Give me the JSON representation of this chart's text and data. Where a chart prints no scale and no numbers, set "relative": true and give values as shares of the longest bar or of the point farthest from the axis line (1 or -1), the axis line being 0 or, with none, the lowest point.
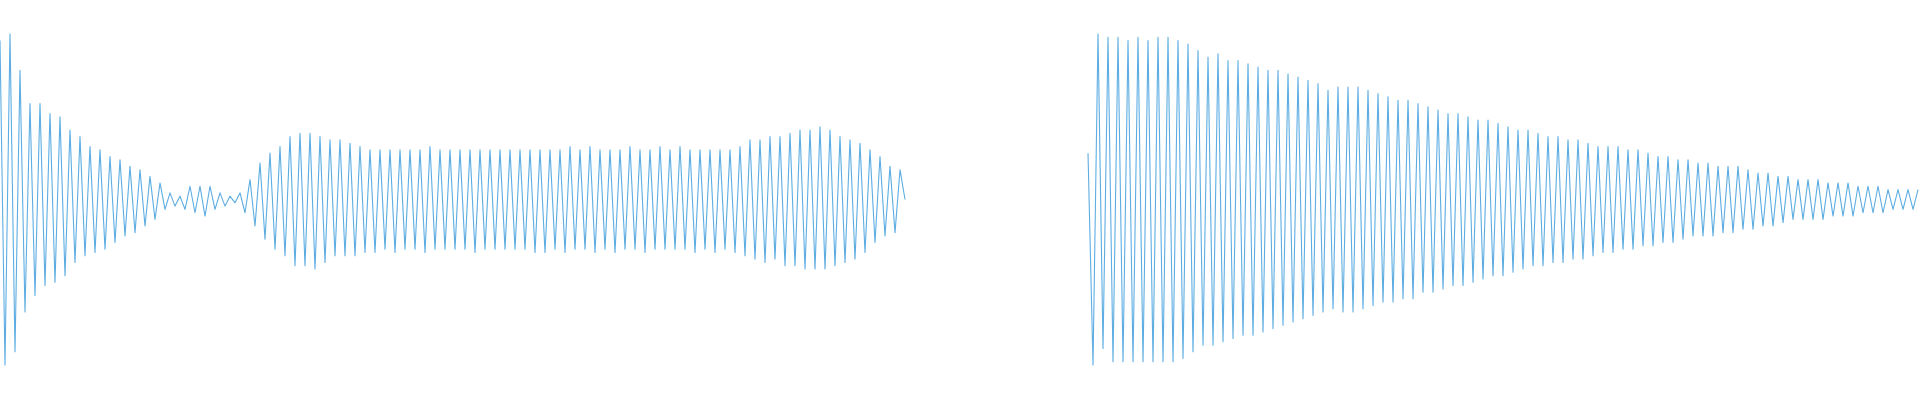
{
  "chart_data": [
    {
      "type": "line",
      "relative": true,
      "color": "#5dade2",
      "categories": [
        null,
        null,
        null,
        null,
        null,
        null,
        null,
        null,
        null,
        null,
        null,
        null,
        null,
        null,
        null,
        null,
        null,
        null,
        null,
        null,
        null,
        null,
        null,
        null,
        null,
        null,
        null,
        null,
        null,
        null,
        null,
        null,
        null,
        null,
        null,
        null,
        null,
        null,
        null,
        null,
        null,
        null,
        null,
        null,
        null,
        null,
        null,
        null,
        null,
        null,
        null,
        null,
        null,
        null,
        null,
        null,
        null,
        null,
        null,
        null,
        null,
        null,
        null,
        null,
        null,
        null,
        null,
        null,
        null,
        null,
        null,
        null,
        null,
        null,
        null,
        null,
        null,
        null,
        null,
        null,
        null,
        null,
        null,
        null,
        null,
        null,
        null,
        null,
        null,
        null,
        null,
        null,
        null,
        null,
        null,
        null,
        null,
        null,
        null,
        null,
        null,
        null,
        null,
        null,
        null,
        null,
        null,
        null,
        null,
        null,
        null,
        null,
        null,
        null,
        null,
        null,
        null,
        null,
        null,
        null,
        null,
        null,
        null,
        null,
        null,
        null,
        null,
        null,
        null,
        null,
        null,
        null,
        null,
        null,
        null,
        null,
        null,
        null,
        null,
        null,
        null,
        null,
        null,
        null,
        null,
        null,
        null,
        null,
        null,
        null,
        null,
        null,
        null,
        null,
        null,
        null,
        null,
        null,
        null,
        null,
        null,
        null,
        null,
        null,
        null,
        null,
        null,
        null,
        null,
        null,
        null,
        null,
        null,
        null,
        null,
        null,
        null,
        null,
        null,
        null,
        null,
        null
      ],
      "values": [
        0.98,
        0.0,
        1.0,
        0.04,
        0.89,
        0.16,
        0.79,
        0.21,
        0.79,
        0.24,
        0.76,
        0.25,
        0.75,
        0.27,
        0.71,
        0.31,
        0.69,
        0.33,
        0.66,
        0.34,
        0.65,
        0.35,
        0.63,
        0.37,
        0.62,
        0.39,
        0.6,
        0.4,
        0.59,
        0.42,
        0.57,
        0.44,
        0.55,
        0.47,
        0.52,
        0.48,
        0.51,
        0.47,
        0.54,
        0.46,
        0.54,
        0.45,
        0.54,
        0.47,
        0.52,
        0.48,
        0.51,
        0.49,
        0.52,
        0.46,
        0.56,
        0.42,
        0.61,
        0.38,
        0.64,
        0.35,
        0.66,
        0.33,
        0.69,
        0.3,
        0.7,
        0.3,
        0.7,
        0.29,
        0.69,
        0.31,
        0.68,
        0.33,
        0.68,
        0.33,
        0.67,
        0.33,
        0.66,
        0.34,
        0.65,
        0.34,
        0.65,
        0.35,
        0.65,
        0.34,
        0.65,
        0.35,
        0.65,
        0.35,
        0.65,
        0.34,
        0.66,
        0.35,
        0.65,
        0.35,
        0.65,
        0.35,
        0.65,
        0.35,
        0.65,
        0.34,
        0.65,
        0.35,
        0.65,
        0.35,
        0.65,
        0.35,
        0.65,
        0.35,
        0.65,
        0.35,
        0.65,
        0.34,
        0.65,
        0.34,
        0.65,
        0.35,
        0.65,
        0.34,
        0.66,
        0.35,
        0.65,
        0.35,
        0.66,
        0.34,
        0.65,
        0.35,
        0.65,
        0.34,
        0.65,
        0.35,
        0.66,
        0.35,
        0.65,
        0.34,
        0.65,
        0.35,
        0.66,
        0.35,
        0.65,
        0.35,
        0.66,
        0.35,
        0.65,
        0.34,
        0.65,
        0.35,
        0.65,
        0.34,
        0.65,
        0.35,
        0.65,
        0.34,
        0.66,
        0.33,
        0.68,
        0.32,
        0.68,
        0.31,
        0.69,
        0.32,
        0.69,
        0.3,
        0.7,
        0.3,
        0.71,
        0.29,
        0.71,
        0.29,
        0.72,
        0.29,
        0.71,
        0.3,
        0.69,
        0.31,
        0.68,
        0.32,
        0.67,
        0.34,
        0.65,
        0.37,
        0.63,
        0.39,
        0.6,
        0.4,
        0.59,
        0.5
      ]
    },
    {
      "type": "line",
      "relative": true,
      "color": "#5dade2",
      "categories": [
        null,
        null,
        null,
        null,
        null,
        null,
        null,
        null,
        null,
        null,
        null,
        null,
        null,
        null,
        null,
        null,
        null,
        null,
        null,
        null,
        null,
        null,
        null,
        null,
        null,
        null,
        null,
        null,
        null,
        null,
        null,
        null,
        null,
        null,
        null,
        null,
        null,
        null,
        null,
        null,
        null,
        null,
        null,
        null,
        null,
        null,
        null,
        null,
        null,
        null,
        null,
        null,
        null,
        null,
        null,
        null,
        null,
        null,
        null,
        null,
        null,
        null,
        null,
        null,
        null,
        null,
        null,
        null,
        null,
        null,
        null,
        null,
        null,
        null,
        null,
        null,
        null,
        null,
        null,
        null,
        null,
        null,
        null,
        null,
        null,
        null,
        null,
        null,
        null,
        null,
        null,
        null,
        null,
        null,
        null,
        null,
        null,
        null,
        null,
        null,
        null,
        null,
        null,
        null,
        null,
        null,
        null,
        null,
        null,
        null,
        null,
        null,
        null,
        null,
        null,
        null,
        null,
        null,
        null,
        null,
        null,
        null,
        null,
        null,
        null,
        null,
        null,
        null,
        null,
        null,
        null,
        null,
        null,
        null,
        null,
        null,
        null,
        null,
        null,
        null,
        null,
        null,
        null,
        null,
        null,
        null,
        null,
        null,
        null,
        null,
        null,
        null,
        null,
        null,
        null,
        null,
        null,
        null,
        null,
        null,
        null,
        null,
        null,
        null,
        null,
        null,
        null
      ],
      "values": [
        0.64,
        0.0,
        1.0,
        0.05,
        0.99,
        0.01,
        0.99,
        0.01,
        0.98,
        0.01,
        0.99,
        0.01,
        0.98,
        0.01,
        0.99,
        0.01,
        0.99,
        0.01,
        0.98,
        0.02,
        0.97,
        0.04,
        0.95,
        0.06,
        0.93,
        0.06,
        0.94,
        0.07,
        0.92,
        0.08,
        0.92,
        0.09,
        0.91,
        0.09,
        0.9,
        0.1,
        0.89,
        0.11,
        0.89,
        0.12,
        0.88,
        0.13,
        0.87,
        0.14,
        0.86,
        0.15,
        0.85,
        0.16,
        0.83,
        0.17,
        0.84,
        0.16,
        0.84,
        0.16,
        0.84,
        0.17,
        0.83,
        0.18,
        0.82,
        0.19,
        0.81,
        0.19,
        0.8,
        0.2,
        0.8,
        0.2,
        0.79,
        0.22,
        0.78,
        0.22,
        0.77,
        0.23,
        0.76,
        0.24,
        0.76,
        0.24,
        0.75,
        0.25,
        0.74,
        0.26,
        0.74,
        0.27,
        0.73,
        0.27,
        0.72,
        0.28,
        0.71,
        0.29,
        0.71,
        0.3,
        0.7,
        0.3,
        0.69,
        0.31,
        0.69,
        0.31,
        0.68,
        0.32,
        0.68,
        0.32,
        0.67,
        0.33,
        0.66,
        0.34,
        0.66,
        0.34,
        0.66,
        0.35,
        0.65,
        0.35,
        0.65,
        0.36,
        0.64,
        0.36,
        0.63,
        0.37,
        0.63,
        0.37,
        0.62,
        0.38,
        0.62,
        0.39,
        0.61,
        0.39,
        0.61,
        0.39,
        0.6,
        0.4,
        0.6,
        0.4,
        0.6,
        0.41,
        0.59,
        0.41,
        0.58,
        0.42,
        0.58,
        0.42,
        0.57,
        0.43,
        0.57,
        0.44,
        0.56,
        0.44,
        0.56,
        0.44,
        0.56,
        0.44,
        0.55,
        0.45,
        0.55,
        0.45,
        0.55,
        0.45,
        0.54,
        0.46,
        0.54,
        0.46,
        0.54,
        0.46,
        0.53,
        0.47,
        0.53,
        0.47,
        0.53,
        0.47,
        0.53
      ]
    }
  ]
}
